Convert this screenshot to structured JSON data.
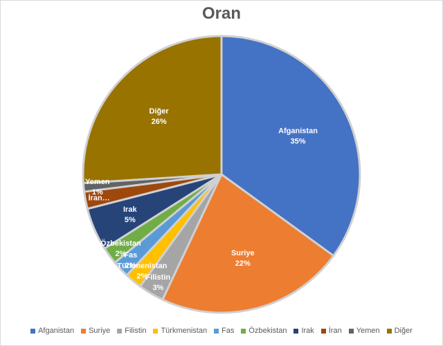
{
  "chart_data": {
    "type": "pie",
    "title": "Oran",
    "categories": [
      "Afganistan",
      "Suriye",
      "Filistin",
      "Türkmenistan",
      "Fas",
      "Özbekistan",
      "Irak",
      "İran",
      "Yemen",
      "Diğer"
    ],
    "values": [
      35,
      22,
      3,
      2,
      2,
      2,
      5,
      2,
      1,
      26
    ],
    "labels": [
      {
        "name": "Afganistan",
        "value": "35%"
      },
      {
        "name": "Suriye",
        "value": "22%"
      },
      {
        "name": "Filistin",
        "value": "3%"
      },
      {
        "name": "Türkmenistan",
        "value": "2%"
      },
      {
        "name": "Fas",
        "value": "2%"
      },
      {
        "name": "Özbekistan",
        "value": "2%"
      },
      {
        "name": "Irak",
        "value": "5%"
      },
      {
        "name": "İran…",
        "value": ""
      },
      {
        "name": "Yemen",
        "value": "1%"
      },
      {
        "name": "Diğer",
        "value": "26%"
      }
    ],
    "colors": [
      "#4472C4",
      "#ED7D31",
      "#A5A5A5",
      "#FFC000",
      "#5B9BD5",
      "#70AD47",
      "#264478",
      "#9E480E",
      "#636363",
      "#997300"
    ],
    "legend_position": "bottom"
  }
}
